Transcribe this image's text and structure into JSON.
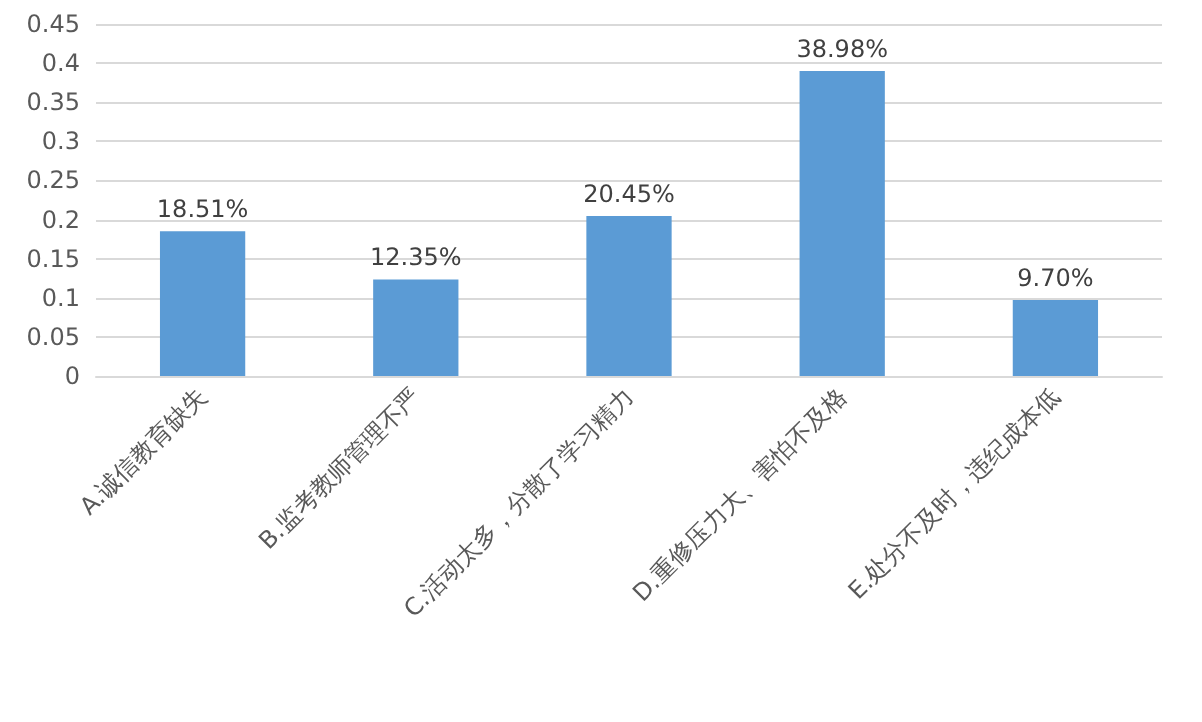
{
  "chart_data": {
    "type": "bar",
    "categories": [
      "A.诚信教育缺失",
      "B.监考教师管理不严",
      "C.活动太多，分散了学习精力",
      "D.重修压力大、害怕不及格",
      "E.处分不及时，违纪成本低"
    ],
    "values": [
      0.1851,
      0.1235,
      0.2045,
      0.3898,
      0.097
    ],
    "value_labels": [
      "18.51%",
      "12.35%",
      "20.45%",
      "38.98%",
      "9.70%"
    ],
    "color": "#5b9bd5",
    "ylim": [
      0,
      0.45
    ],
    "yticks": [
      0,
      0.05,
      0.1,
      0.15,
      0.2,
      0.25,
      0.3,
      0.35,
      0.4,
      0.45
    ],
    "grid": "y"
  }
}
